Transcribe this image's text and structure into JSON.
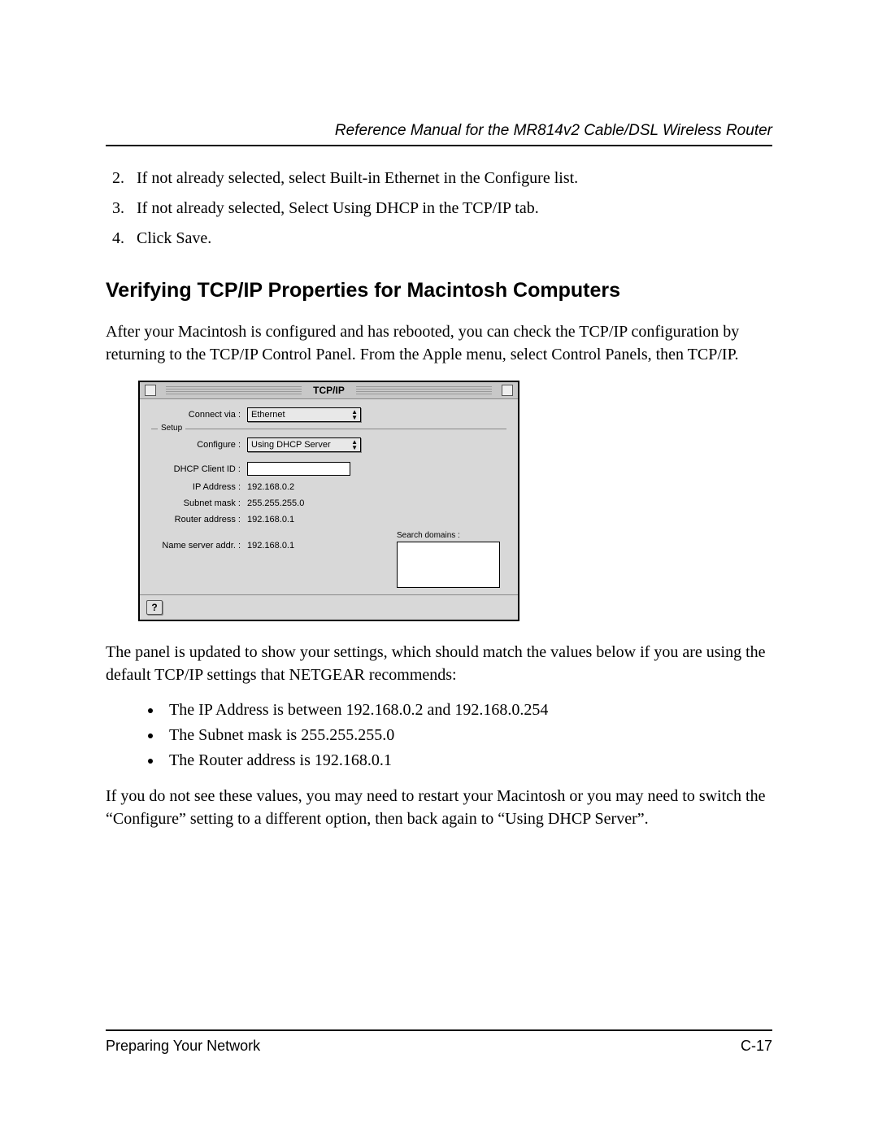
{
  "header": {
    "title": "Reference Manual for the MR814v2 Cable/DSL Wireless Router"
  },
  "steps": {
    "start": 2,
    "items": [
      "If not already selected, select Built-in Ethernet in the Configure list.",
      "If not already selected, Select Using DHCP in the TCP/IP tab.",
      "Click Save."
    ]
  },
  "section_heading": "Verifying TCP/IP Properties for Macintosh Computers",
  "para_intro": "After your Macintosh is configured and has rebooted, you can check the TCP/IP configuration by returning to the TCP/IP Control Panel. From the Apple menu, select Control Panels, then TCP/IP.",
  "tcpip_panel": {
    "window_title": "TCP/IP",
    "connect_via_label": "Connect via :",
    "connect_via_value": "Ethernet",
    "setup_legend": "Setup",
    "configure_label": "Configure :",
    "configure_value": "Using DHCP Server",
    "dhcp_client_label": "DHCP Client ID :",
    "dhcp_client_value": "",
    "ip_address_label": "IP Address :",
    "ip_address_value": "192.168.0.2",
    "subnet_label": "Subnet mask :",
    "subnet_value": "255.255.255.0",
    "router_label": "Router address :",
    "router_value": "192.168.0.1",
    "nameserver_label": "Name server addr. :",
    "nameserver_value": "192.168.0.1",
    "search_domains_label": "Search domains :",
    "help_glyph": "?"
  },
  "para_after_panel": "The panel is updated to show your settings, which should match the values below if you are using the default TCP/IP settings that NETGEAR recommends:",
  "bullets": [
    "The IP Address is between 192.168.0.2 and 192.168.0.254",
    "The Subnet mask is 255.255.255.0",
    "The Router address is 192.168.0.1"
  ],
  "para_final": "If you do not see these values, you may need to restart your Macintosh or you may need to switch the “Configure” setting to a different option, then back again to “Using DHCP Server”.",
  "footer": {
    "left": "Preparing Your Network",
    "right": "C-17"
  },
  "colors": {
    "panel_bg": "#d8d8d8",
    "text": "#000000"
  }
}
